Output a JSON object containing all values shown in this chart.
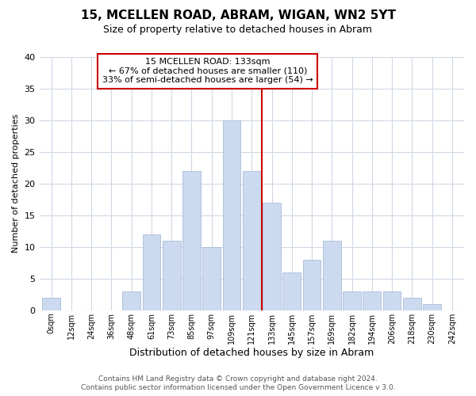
{
  "title": "15, MCELLEN ROAD, ABRAM, WIGAN, WN2 5YT",
  "subtitle": "Size of property relative to detached houses in Abram",
  "xlabel": "Distribution of detached houses by size in Abram",
  "ylabel": "Number of detached properties",
  "bin_labels": [
    "0sqm",
    "12sqm",
    "24sqm",
    "36sqm",
    "48sqm",
    "61sqm",
    "73sqm",
    "85sqm",
    "97sqm",
    "109sqm",
    "121sqm",
    "133sqm",
    "145sqm",
    "157sqm",
    "169sqm",
    "182sqm",
    "194sqm",
    "206sqm",
    "218sqm",
    "230sqm",
    "242sqm"
  ],
  "bar_values": [
    2,
    0,
    0,
    0,
    3,
    12,
    11,
    22,
    10,
    30,
    22,
    17,
    6,
    8,
    11,
    3,
    3,
    3,
    2,
    1,
    0
  ],
  "bar_color": "#ccdaf0",
  "bar_edge_color": "#aabbd8",
  "reference_line_label": "15 MCELLEN ROAD: 133sqm",
  "annotation_line1": "← 67% of detached houses are smaller (110)",
  "annotation_line2": "33% of semi-detached houses are larger (54) →",
  "annotation_box_color": "#ffffff",
  "annotation_box_edge_color": "#cc0000",
  "ylim": [
    0,
    40
  ],
  "yticks": [
    0,
    5,
    10,
    15,
    20,
    25,
    30,
    35,
    40
  ],
  "footer_line1": "Contains HM Land Registry data © Crown copyright and database right 2024.",
  "footer_line2": "Contains public sector information licensed under the Open Government Licence v 3.0.",
  "reference_line_color": "#cc0000",
  "grid_color": "#d0d8e4",
  "background_color": "#ffffff",
  "ref_bar_index": 11
}
